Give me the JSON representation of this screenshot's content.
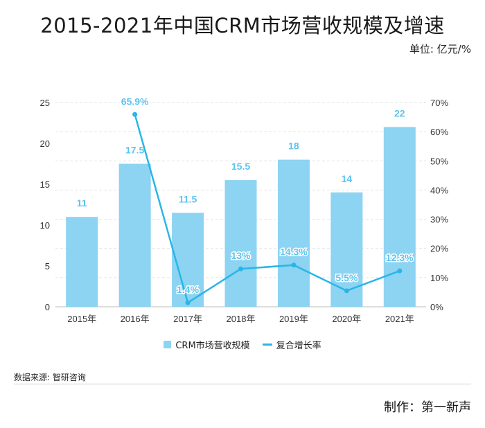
{
  "title": "2015-2021年中国CRM市场营收规模及增速",
  "unit_label": "单位: 亿元/%",
  "legend": {
    "bar_label": "CRM市场营收规模",
    "line_label": "复合增长率"
  },
  "source": "数据来源: 智研咨询",
  "maker": "制作：第一新声",
  "colors": {
    "bar": "#8dd3f2",
    "line": "#29b6e6",
    "label": "#5cc4ee",
    "grid": "#e3e3e3",
    "axis_text": "#333333"
  },
  "chart_data": {
    "type": "bar+line",
    "categories": [
      "2015年",
      "2016年",
      "2017年",
      "2018年",
      "2019年",
      "2020年",
      "2021年"
    ],
    "series": [
      {
        "name": "CRM市场营收规模",
        "type": "bar",
        "axis": "left",
        "values": [
          11,
          17.5,
          11.5,
          15.5,
          18,
          14,
          22
        ],
        "labels": [
          "11",
          "17.5",
          "11.5",
          "15.5",
          "18",
          "14",
          "22"
        ]
      },
      {
        "name": "复合增长率",
        "type": "line",
        "axis": "right",
        "values": [
          null,
          65.9,
          1.4,
          13,
          14.3,
          5.5,
          12.3
        ],
        "labels": [
          "",
          "65.9%",
          "1.4%",
          "13%",
          "14.3%",
          "5.5%",
          "12.3%"
        ]
      }
    ],
    "y_left": {
      "min": 0,
      "max": 25,
      "ticks": [
        0,
        5,
        10,
        15,
        20,
        25
      ],
      "tick_labels": [
        "0",
        "5",
        "10",
        "15",
        "20",
        "25"
      ]
    },
    "y_right": {
      "min": 0,
      "max": 70,
      "ticks": [
        0,
        10,
        20,
        30,
        40,
        50,
        60,
        70
      ],
      "tick_labels": [
        "0%",
        "10%",
        "20%",
        "30%",
        "40%",
        "50%",
        "60%",
        "70%"
      ]
    },
    "grid": true,
    "legend_position": "bottom"
  }
}
